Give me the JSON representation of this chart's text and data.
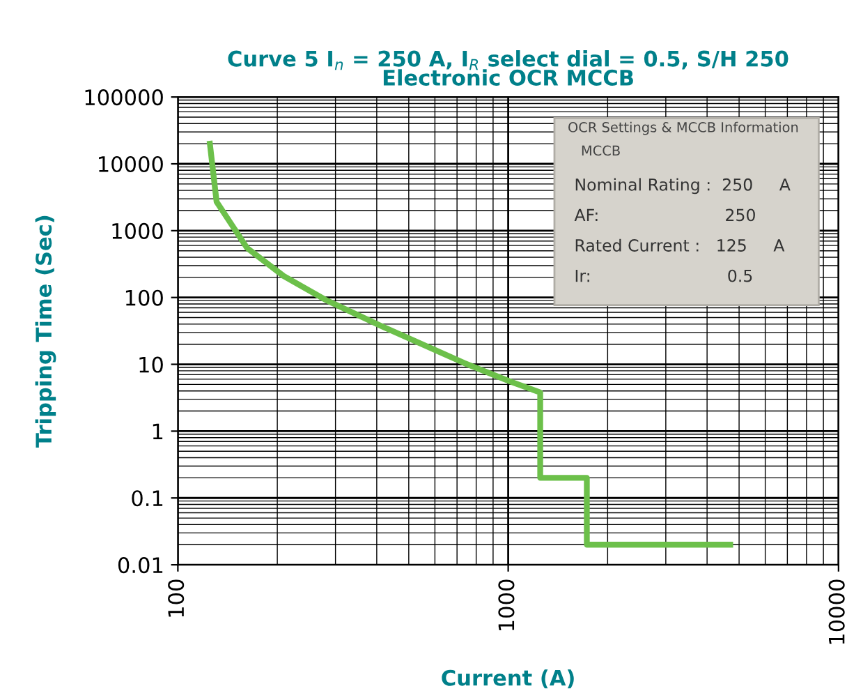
{
  "chart_data": {
    "type": "line",
    "title": "Curve 5 I$_{n}$ = 250 A, I$_{R}$ select dial = 0.5, S/H 250\nElectronic OCR MCCB",
    "xlabel": "Current (A)",
    "ylabel": "Tripping Time (Sec)",
    "series": [
      {
        "color": "#6cc04a",
        "x": [
          125,
          131,
          162,
          209,
          279,
          410,
          735,
          1016,
          1250,
          1250,
          1730,
          1730,
          4700
        ],
        "values": [
          20000,
          2700,
          550,
          210,
          93,
          38,
          10.5,
          5.5,
          3.8,
          0.2,
          0.2,
          0.02,
          0.02
        ]
      }
    ],
    "log": "xy",
    "xlim": [
      100,
      10000
    ],
    "xticks": [
      100,
      1000,
      10000
    ],
    "ylim": [
      0.01,
      100000
    ],
    "yticks": [
      0.01,
      0.1,
      1,
      10,
      100,
      1000,
      10000,
      100000
    ],
    "grid": true,
    "marker": "none",
    "line_style": "solid",
    "annotations": [
      "OCR Settings & MCCB Information",
      "MCCB",
      "Nominal Rating :  250     A",
      "AF:                        250",
      "Rated Current :   125     A",
      "Ir:                          0.5"
    ]
  }
}
